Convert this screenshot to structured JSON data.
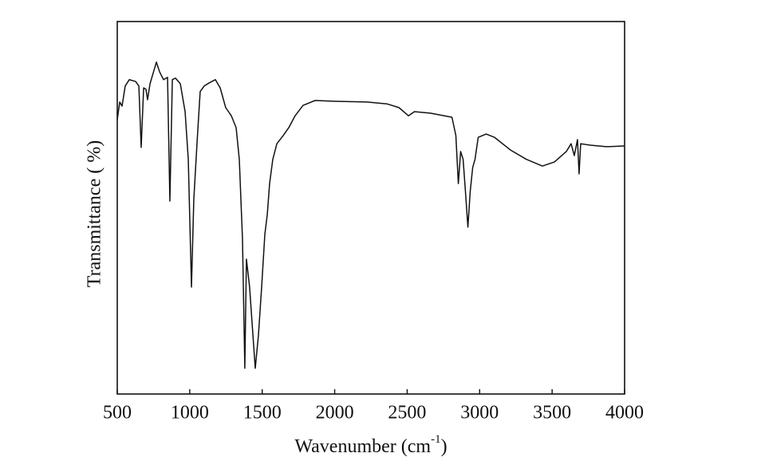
{
  "chart_data": {
    "type": "line",
    "xlabel": {
      "text": "Wavenumber (cm",
      "superscript": "-1",
      "suffix": ")"
    },
    "ylabel": "Transmittance ( %)",
    "xlim": [
      500,
      4000
    ],
    "xticks": [
      500,
      1000,
      1500,
      2000,
      2500,
      3000,
      3500,
      4000
    ],
    "ylim": [
      0,
      100
    ],
    "grid": false,
    "series": [
      {
        "color": "#111111",
        "x": [
          500,
          517,
          533,
          555,
          583,
          627,
          649,
          665,
          682,
          698,
          709,
          726,
          742,
          770,
          792,
          819,
          847,
          863,
          880,
          902,
          935,
          968,
          990,
          1012,
          1028,
          1050,
          1072,
          1100,
          1133,
          1177,
          1210,
          1248,
          1287,
          1320,
          1342,
          1364,
          1380,
          1391,
          1413,
          1436,
          1452,
          1474,
          1496,
          1518,
          1535,
          1551,
          1573,
          1601,
          1645,
          1683,
          1727,
          1782,
          1865,
          2002,
          2222,
          2360,
          2443,
          2509,
          2550,
          2660,
          2809,
          2836,
          2853,
          2869,
          2886,
          2902,
          2919,
          2935,
          2952,
          2968,
          2990,
          3045,
          3103,
          3213,
          3323,
          3433,
          3516,
          3598,
          3631,
          3653,
          3675,
          3686,
          3697,
          3763,
          3873,
          4000
        ],
        "values": [
          73.7,
          78.4,
          77.3,
          82.7,
          84.4,
          83.9,
          82.7,
          66.2,
          82.2,
          81.8,
          79.0,
          83.3,
          85.4,
          89.1,
          86.5,
          84.4,
          85.0,
          51.8,
          84.4,
          84.8,
          83.3,
          75.8,
          63.0,
          28.7,
          52.2,
          67.2,
          81.2,
          82.7,
          83.5,
          84.4,
          82.2,
          76.9,
          74.7,
          71.5,
          63.0,
          41.5,
          6.9,
          36.2,
          28.7,
          15.8,
          6.9,
          15.8,
          28.7,
          42.8,
          48.2,
          56.5,
          63.0,
          67.2,
          69.4,
          71.5,
          74.7,
          77.5,
          78.8,
          78.6,
          78.4,
          77.9,
          76.9,
          74.7,
          75.8,
          75.4,
          74.3,
          69.4,
          56.5,
          65.1,
          63.0,
          54.4,
          44.8,
          54.4,
          60.8,
          63.0,
          68.9,
          69.8,
          68.9,
          65.5,
          63.0,
          61.2,
          62.3,
          65.1,
          67.2,
          64.0,
          68.3,
          59.1,
          67.2,
          66.8,
          66.4,
          66.6
        ]
      }
    ]
  }
}
